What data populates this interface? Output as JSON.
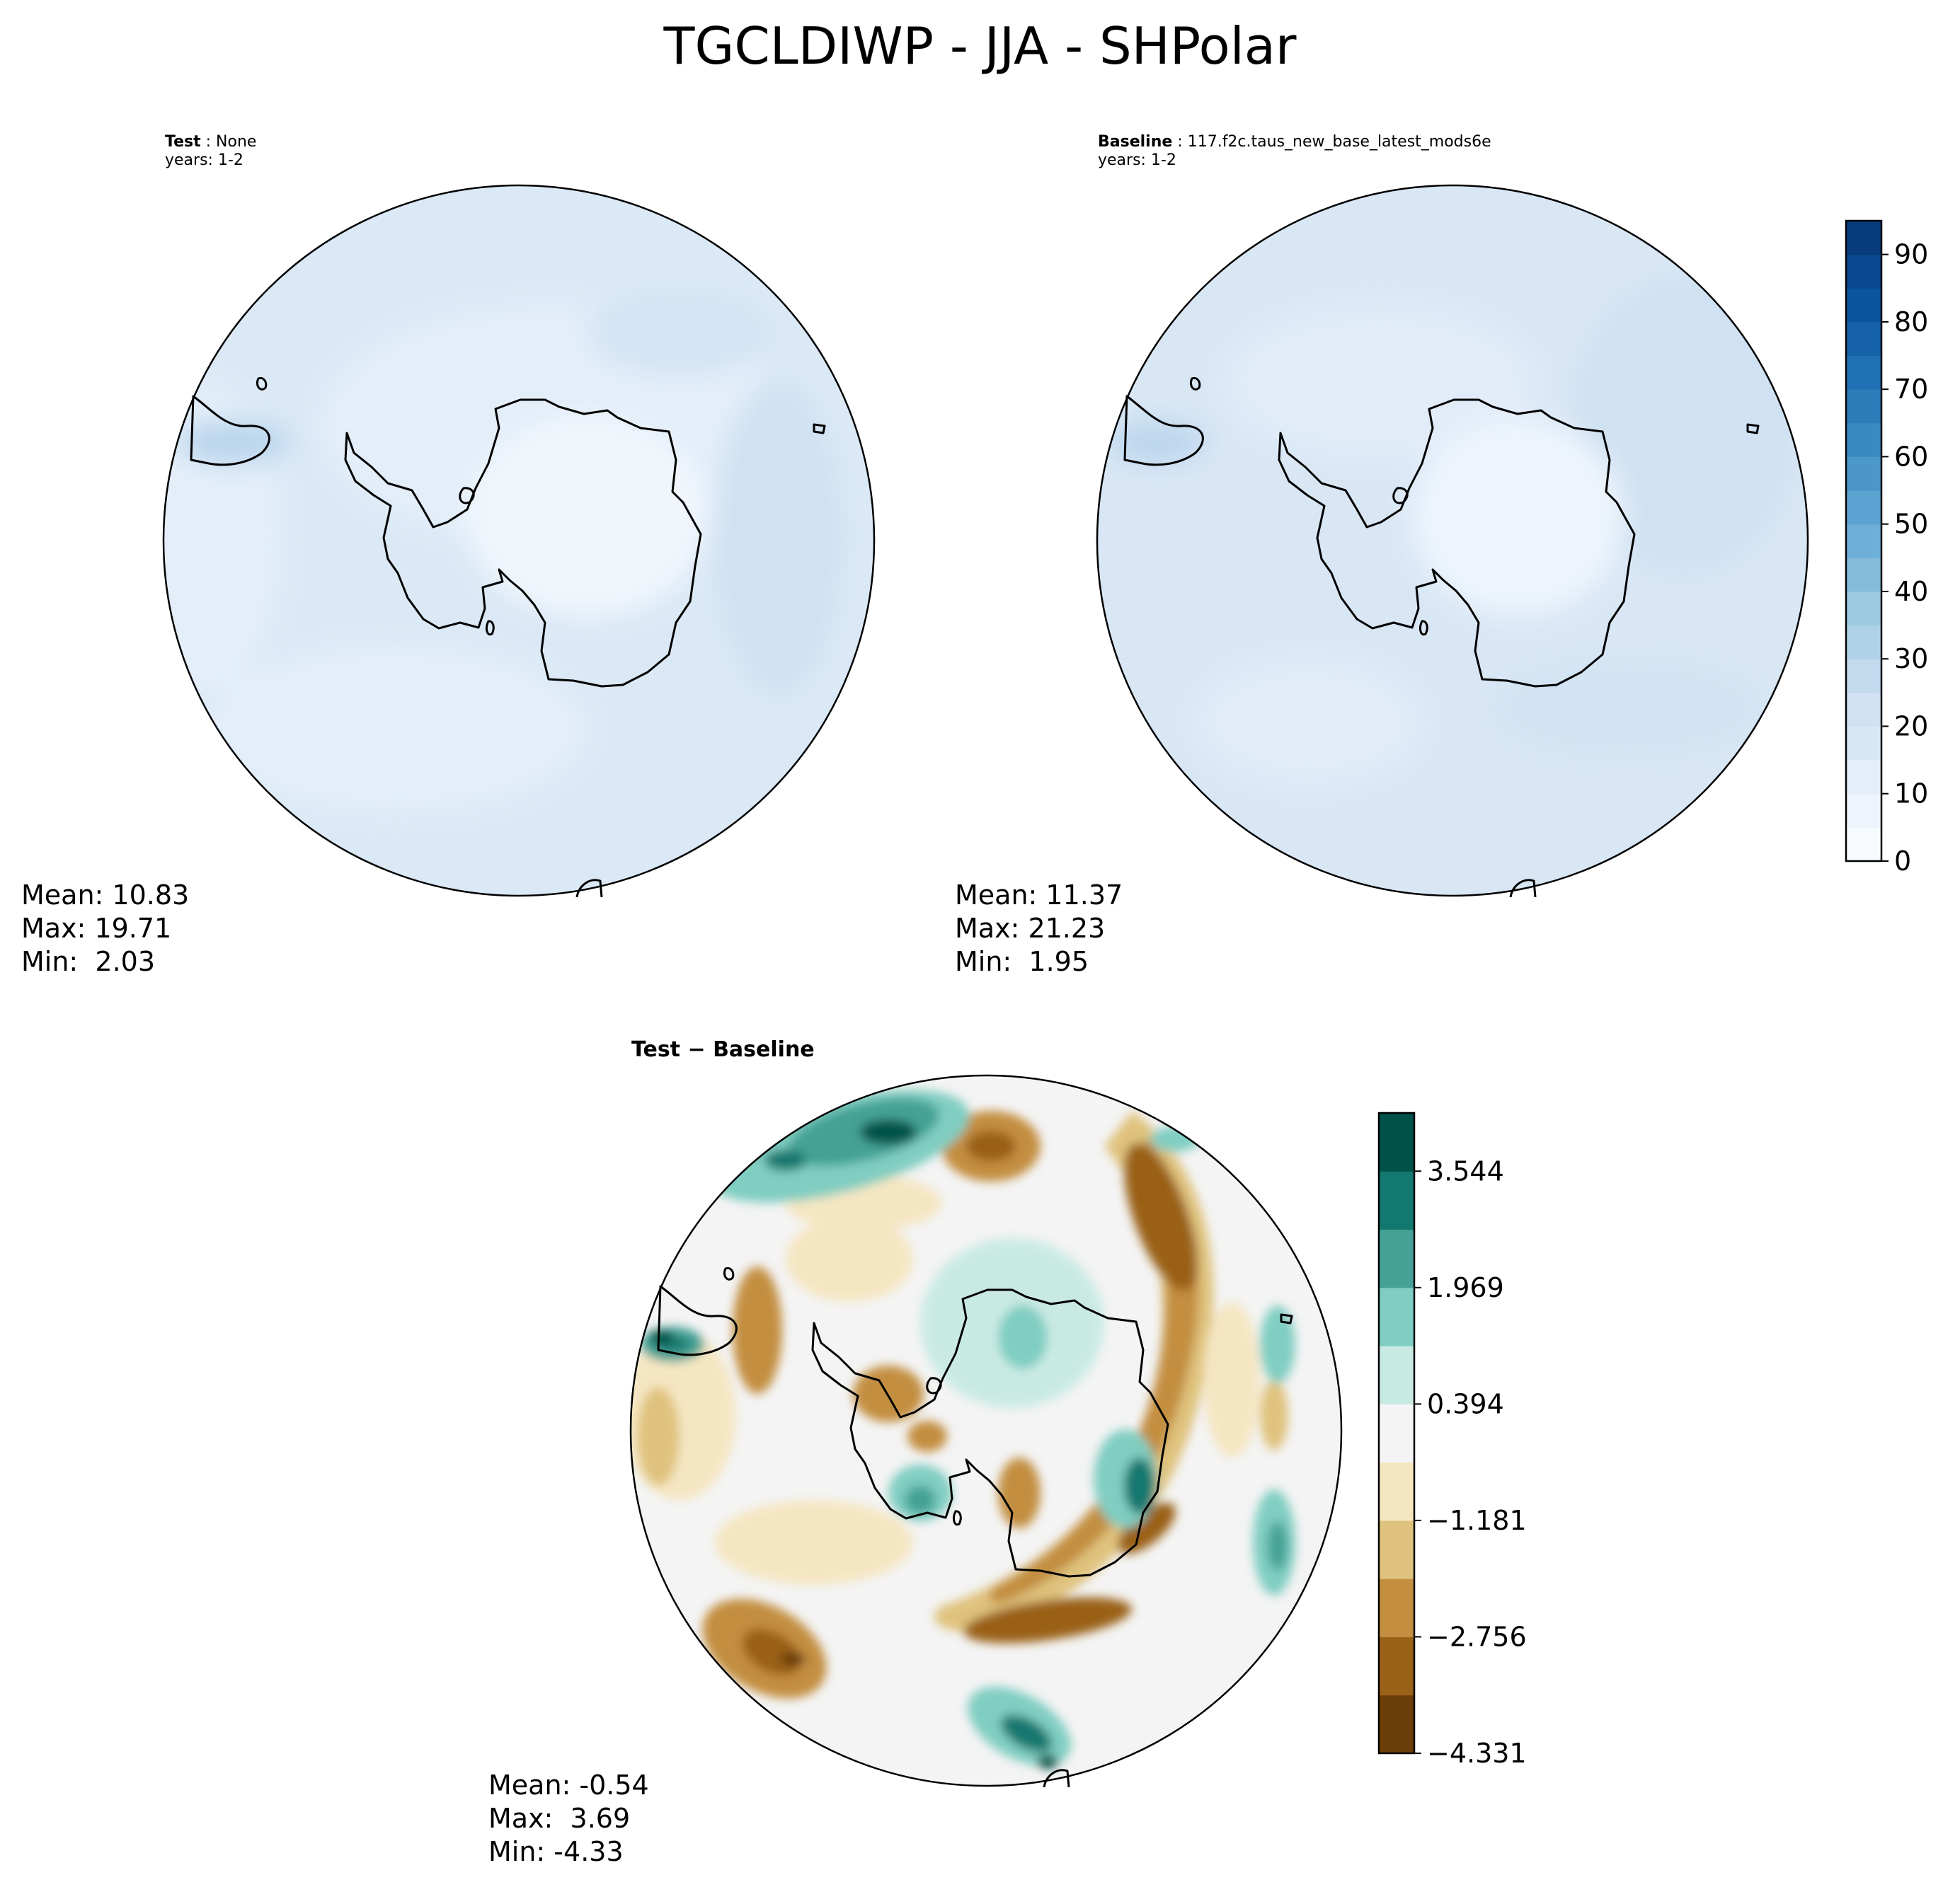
{
  "title": "TGCLDIWP - JJA - SHPolar",
  "panels": {
    "test": {
      "case_label": "Test",
      "case_name": "None",
      "years": "years: 1-2",
      "stats": {
        "mean_label": "Mean: 10.83",
        "max_label": "Max: 19.71",
        "min_label": "Min:  2.03"
      }
    },
    "baseline": {
      "case_label": "Baseline",
      "case_name": "117.f2c.taus_new_base_latest_mods6e",
      "years": "years: 1-2",
      "stats": {
        "mean_label": "Mean: 11.37",
        "max_label": "Max: 21.23",
        "min_label": "Min:  1.95"
      }
    },
    "diff": {
      "title_left": "Test",
      "title_sep": " − ",
      "title_right": "Baseline",
      "stats": {
        "mean_label": "Mean: -0.54",
        "max_label": "Max:  3.69",
        "min_label": "Min: -4.33"
      }
    }
  },
  "chart_data": [
    {
      "type": "heatmap",
      "projection": "south-polar-stereographic",
      "panel": "Test",
      "stats": {
        "mean": 10.83,
        "max": 19.71,
        "min": 2.03
      },
      "colormap": "Blues",
      "levels": [
        0,
        5,
        10,
        15,
        20,
        25,
        30,
        35,
        40,
        45,
        50,
        55,
        60,
        65,
        70,
        75,
        80,
        85,
        90,
        95
      ]
    },
    {
      "type": "heatmap",
      "projection": "south-polar-stereographic",
      "panel": "Baseline",
      "stats": {
        "mean": 11.37,
        "max": 21.23,
        "min": 1.95
      },
      "colormap": "Blues",
      "levels": [
        0,
        5,
        10,
        15,
        20,
        25,
        30,
        35,
        40,
        45,
        50,
        55,
        60,
        65,
        70,
        75,
        80,
        85,
        90,
        95
      ],
      "colorbar_ticks": [
        "0",
        "10",
        "20",
        "30",
        "40",
        "50",
        "60",
        "70",
        "80",
        "90"
      ],
      "colorbar_colors": [
        "#f7fbff",
        "#edf4fc",
        "#e3eef9",
        "#d8e7f5",
        "#cfe1f2",
        "#c2d9ee",
        "#b0d2e8",
        "#9dc9e1",
        "#85bcdc",
        "#6dafd7",
        "#5ba3d0",
        "#4b97c9",
        "#3a8ac2",
        "#2c7cba",
        "#2070b4",
        "#1562a9",
        "#0b559f",
        "#08488e",
        "#083b7c"
      ]
    },
    {
      "type": "heatmap",
      "projection": "south-polar-stereographic",
      "panel": "Test - Baseline",
      "stats": {
        "mean": -0.54,
        "max": 3.69,
        "min": -4.33
      },
      "colormap": "BrBG",
      "levels": [
        -4.331,
        -3.5435,
        -2.756,
        -1.9685,
        -1.181,
        -0.3935,
        0.394,
        1.1815,
        1.969,
        2.7565,
        3.544,
        4.3315
      ],
      "colorbar_ticks": [
        "−4.331",
        "−2.756",
        "−1.181",
        "0.394",
        "1.969",
        "3.544"
      ],
      "colorbar_colors": [
        "#6a3d09",
        "#9a6119",
        "#c38e40",
        "#dfc27d",
        "#f5e6c2",
        "#f4f4f4",
        "#c9eae3",
        "#80cdc1",
        "#45a195",
        "#137870",
        "#01534a"
      ]
    }
  ],
  "colors": {
    "coast": "#000000",
    "land_ice": "#f1f6fc"
  }
}
